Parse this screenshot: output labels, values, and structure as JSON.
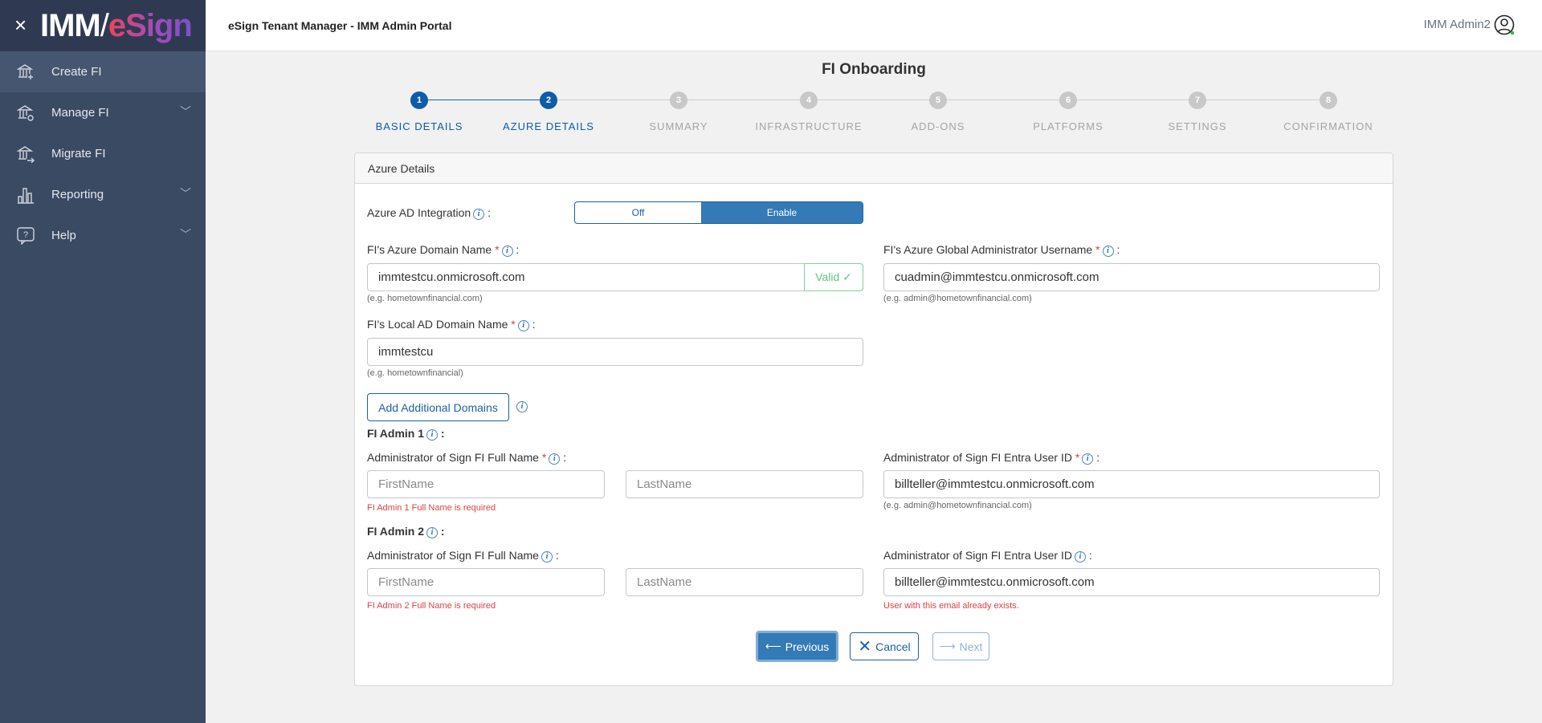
{
  "sidebar": {
    "logo": {
      "imm": "IMM",
      "esign": "eSign"
    },
    "items": [
      {
        "label": "Create FI",
        "icon": "bank-plus-icon",
        "active": true
      },
      {
        "label": "Manage FI",
        "icon": "bank-gear-icon",
        "expandable": true
      },
      {
        "label": "Migrate FI",
        "icon": "bank-arrow-icon"
      },
      {
        "label": "Reporting",
        "icon": "bar-chart-icon",
        "expandable": true
      },
      {
        "label": "Help",
        "icon": "help-bubble-icon",
        "expandable": true
      }
    ]
  },
  "header": {
    "title": "eSign Tenant Manager - IMM Admin Portal",
    "user": "IMM Admin2",
    "status_color": "#2fbf4f"
  },
  "page": {
    "title": "FI Onboarding"
  },
  "stepper": {
    "current": 2,
    "steps": [
      {
        "num": "1",
        "label": "BASIC DETAILS"
      },
      {
        "num": "2",
        "label": "AZURE DETAILS"
      },
      {
        "num": "3",
        "label": "SUMMARY"
      },
      {
        "num": "4",
        "label": "INFRASTRUCTURE"
      },
      {
        "num": "5",
        "label": "ADD-ONS"
      },
      {
        "num": "6",
        "label": "PLATFORMS"
      },
      {
        "num": "7",
        "label": "SETTINGS"
      },
      {
        "num": "8",
        "label": "CONFIRMATION"
      }
    ]
  },
  "card": {
    "title": "Azure Details",
    "azure_ad": {
      "label": "Azure AD Integration",
      "off": "Off",
      "enable": "Enable",
      "selected": "Enable"
    },
    "azure_domain": {
      "label": "FI's Azure Domain Name",
      "value": "immtestcu.onmicrosoft.com",
      "valid": "Valid ✓",
      "hint": "(e.g. hometownfinancial.com)"
    },
    "global_admin": {
      "label": "FI's Azure Global Administrator Username",
      "value": "cuadmin@immtestcu.onmicrosoft.com",
      "hint": "(e.g. admin@hometownfinancial.com)"
    },
    "local_domain": {
      "label": "FI's Local AD Domain Name",
      "value": "immtestcu",
      "hint": "(e.g. hometownfinancial)"
    },
    "add_domains": "Add Additional Domains",
    "admin1": {
      "heading": "FI Admin 1",
      "name_label": "Administrator of Sign FI Full Name",
      "first_ph": "FirstName",
      "last_ph": "LastName",
      "error": "FI Admin 1 Full Name is required",
      "id_label": "Administrator of Sign FI Entra User ID",
      "id_value": "billteller@immtestcu.onmicrosoft.com",
      "id_hint": "(e.g. admin@hometownfinancial.com)"
    },
    "admin2": {
      "heading": "FI Admin 2",
      "name_label": "Administrator of Sign FI Full Name",
      "first_ph": "FirstName",
      "last_ph": "LastName",
      "error": "FI Admin 2 Full Name is required",
      "id_label": "Administrator of Sign FI Entra User ID",
      "id_value": "billteller@immtestcu.onmicrosoft.com",
      "id_error": "User with this email already exists."
    },
    "buttons": {
      "previous": "Previous",
      "cancel": "Cancel",
      "next": "Next"
    }
  }
}
